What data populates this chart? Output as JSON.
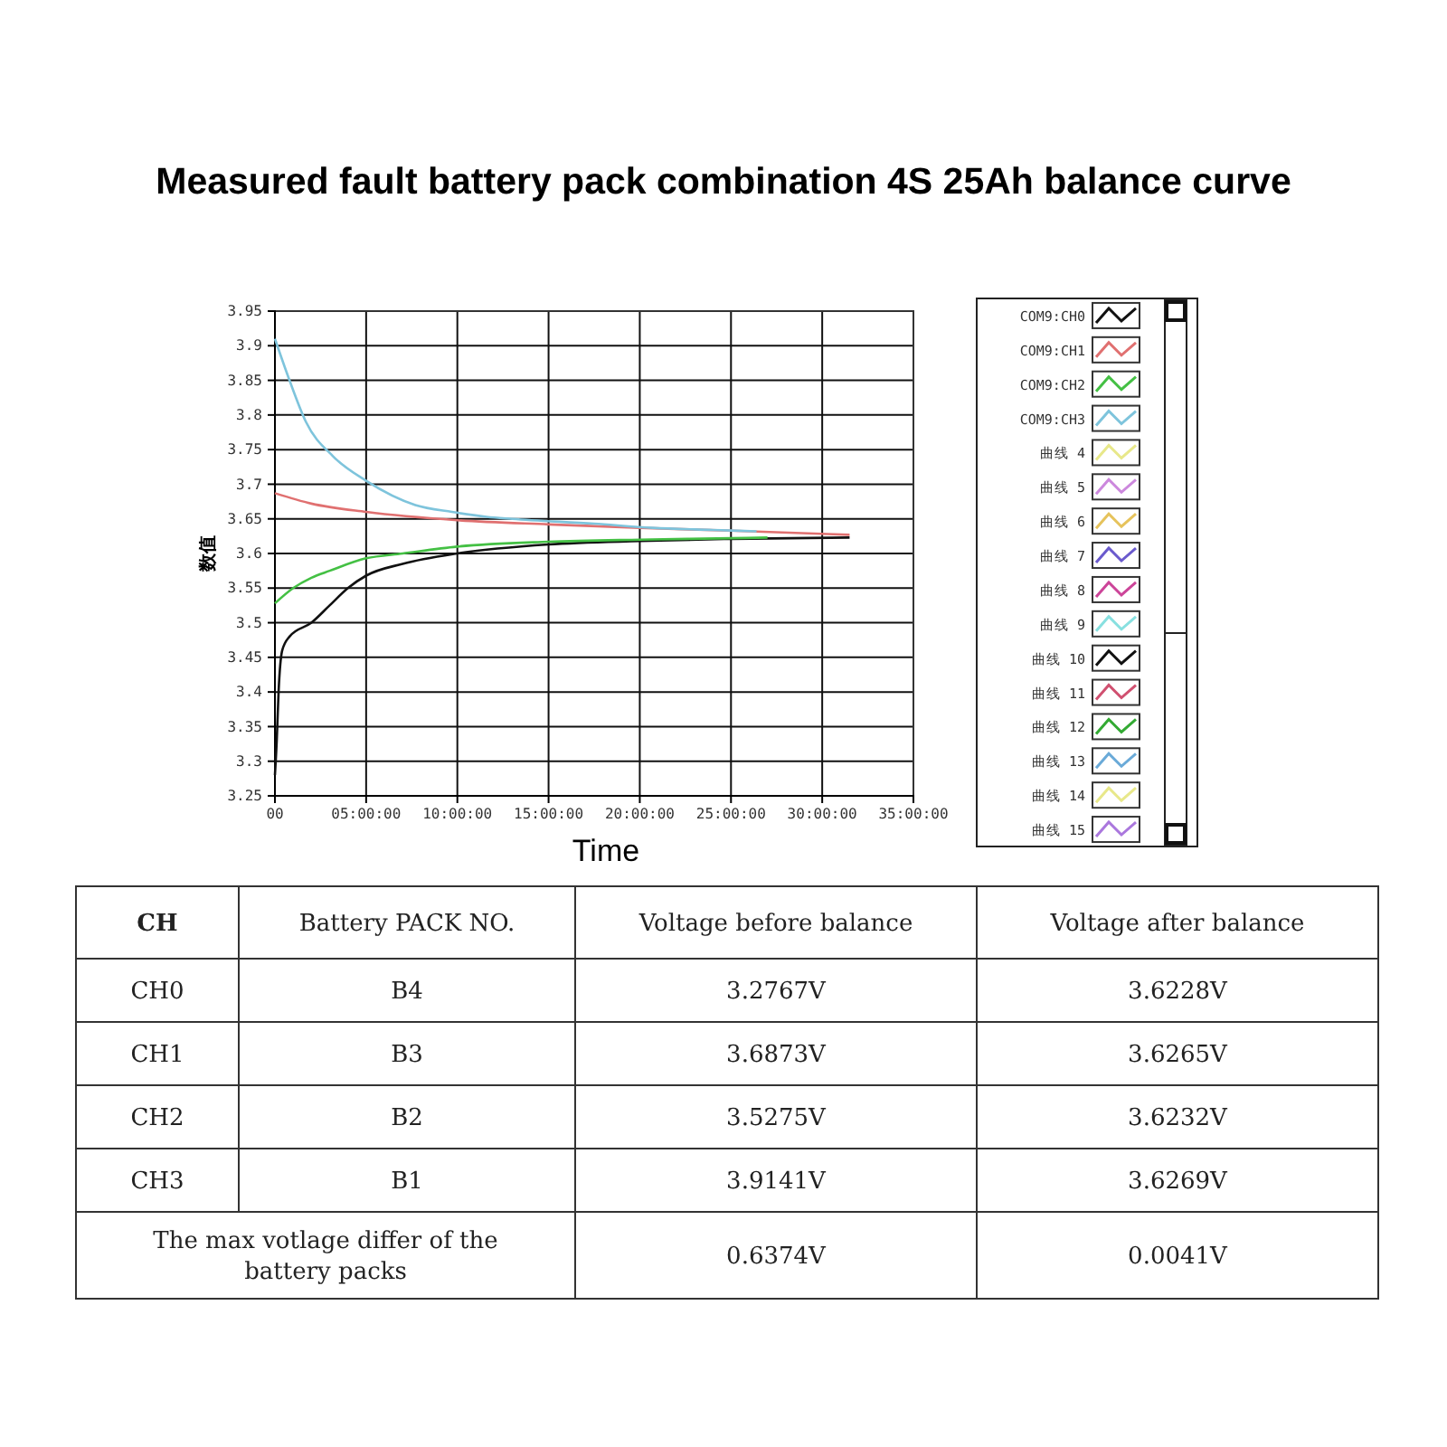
{
  "chart_data": [
    {
      "type": "line",
      "title": "Measured fault battery pack combination 4S 25Ah balance curve",
      "xlabel": "Time",
      "ylabel": "数值",
      "xlim": [
        0,
        35
      ],
      "xticks": [
        {
          "value": 0,
          "label": "00"
        },
        {
          "value": 5,
          "label": "05:00:00"
        },
        {
          "value": 10,
          "label": "10:00:00"
        },
        {
          "value": 15,
          "label": "15:00:00"
        },
        {
          "value": 20,
          "label": "20:00:00"
        },
        {
          "value": 25,
          "label": "25:00:00"
        },
        {
          "value": 30,
          "label": "30:00:00"
        },
        {
          "value": 35,
          "label": "35:00:00"
        }
      ],
      "ylim": [
        3.25,
        3.95
      ],
      "yticks": [
        3.25,
        3.3,
        3.35,
        3.4,
        3.45,
        3.5,
        3.55,
        3.6,
        3.65,
        3.7,
        3.75,
        3.8,
        3.85,
        3.9,
        3.95
      ],
      "grid": true,
      "legend": "right",
      "series": [
        {
          "name": "COM9:CH0",
          "color": "#111111",
          "x": [
            0,
            0.1,
            0.2,
            0.4,
            0.8,
            2,
            3,
            4,
            5,
            7,
            10,
            15,
            20,
            25,
            31.5
          ],
          "values": [
            3.28,
            3.33,
            3.4,
            3.46,
            3.48,
            3.5,
            3.525,
            3.55,
            3.568,
            3.585,
            3.6,
            3.613,
            3.618,
            3.621,
            3.623
          ]
        },
        {
          "name": "COM9:CH1",
          "color": "#e07070",
          "x": [
            0,
            2,
            5,
            10,
            15,
            20,
            25,
            31.5
          ],
          "values": [
            3.687,
            3.672,
            3.66,
            3.648,
            3.642,
            3.637,
            3.633,
            3.627
          ]
        },
        {
          "name": "COM9:CH2",
          "color": "#44c044",
          "x": [
            0,
            1,
            2,
            3,
            5,
            7,
            10,
            15,
            20,
            25,
            27
          ],
          "values": [
            3.528,
            3.55,
            3.565,
            3.575,
            3.593,
            3.6,
            3.61,
            3.617,
            3.62,
            3.622,
            3.623
          ]
        },
        {
          "name": "COM9:CH3",
          "color": "#7ec4dc",
          "x": [
            0,
            0.8,
            1.7,
            3.2,
            5,
            7.7,
            9.7,
            11.6,
            13,
            17.5,
            20.7,
            24,
            26.4
          ],
          "values": [
            3.91,
            3.85,
            3.79,
            3.74,
            3.705,
            3.67,
            3.66,
            3.653,
            3.65,
            3.643,
            3.637,
            3.634,
            3.632
          ]
        },
        {
          "name": "曲线 4",
          "color": "#e8e88a"
        },
        {
          "name": "曲线 5",
          "color": "#cc88dd"
        },
        {
          "name": "曲线 6",
          "color": "#e6c35c"
        },
        {
          "name": "曲线 7",
          "color": "#6a5acd"
        },
        {
          "name": "曲线 8",
          "color": "#cc4499"
        },
        {
          "name": "曲线 9",
          "color": "#88e0e0"
        },
        {
          "name": "曲线 10",
          "color": "#111111"
        },
        {
          "name": "曲线 11",
          "color": "#d05070"
        },
        {
          "name": "曲线 12",
          "color": "#33aa33"
        },
        {
          "name": "曲线 13",
          "color": "#6aaad8"
        },
        {
          "name": "曲线 14",
          "color": "#e8e88a"
        },
        {
          "name": "曲线 15",
          "color": "#aa77dd"
        }
      ]
    },
    {
      "type": "other",
      "annotations": [
        "CH",
        "Battery PACK NO.",
        "Voltage before balance",
        "Voltage after balance",
        "CH0",
        "B4",
        "3.2767V",
        "3.6228V",
        "CH1",
        "B3",
        "3.6873V",
        "3.6265V",
        "CH2",
        "B2",
        "3.5275V",
        "3.6232V",
        "CH3",
        "B1",
        "3.9141V",
        "3.6269V",
        "The max votlage differ of the battery packs",
        "0.6374V",
        "0.0041V"
      ]
    }
  ]
}
